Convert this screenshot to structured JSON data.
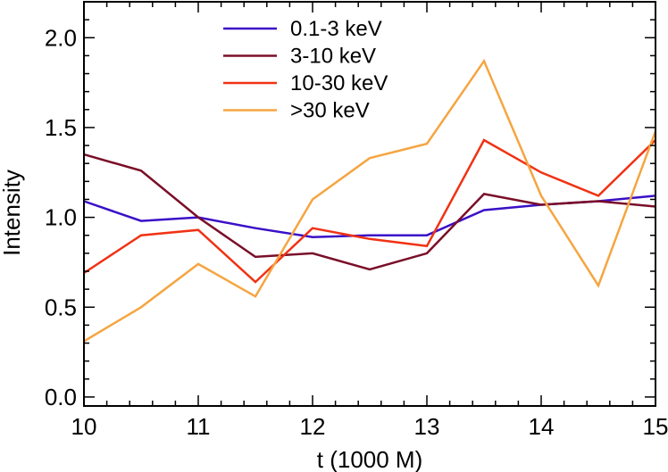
{
  "chart_data": {
    "type": "line",
    "title": "",
    "xlabel": "t (1000 M)",
    "ylabel": "Intensity",
    "xlim": [
      10,
      15
    ],
    "ylim": [
      -0.05,
      2.2
    ],
    "x_ticks": [
      10,
      11,
      12,
      13,
      14,
      15
    ],
    "x_tick_labels": [
      "10",
      "11",
      "12",
      "13",
      "14",
      "15"
    ],
    "y_ticks": [
      0.0,
      0.5,
      1.0,
      1.5,
      2.0
    ],
    "y_tick_labels": [
      "0.0",
      "0.5",
      "1.0",
      "1.5",
      "2.0"
    ],
    "grid": false,
    "legend_position": "top-center",
    "x": [
      10.0,
      10.5,
      11.0,
      11.5,
      12.0,
      12.5,
      13.0,
      13.5,
      14.0,
      14.5,
      15.0
    ],
    "series": [
      {
        "name": "0.1-3 keV",
        "color": "#3a10c8",
        "values": [
          1.09,
          0.98,
          1.0,
          0.94,
          0.89,
          0.9,
          0.9,
          1.04,
          1.07,
          1.09,
          1.12
        ]
      },
      {
        "name": "3-10 keV",
        "color": "#7a0e28",
        "values": [
          1.35,
          1.26,
          1.0,
          0.78,
          0.8,
          0.71,
          0.8,
          1.13,
          1.07,
          1.09,
          1.06
        ]
      },
      {
        "name": "10-30 keV",
        "color": "#f03214",
        "values": [
          0.69,
          0.9,
          0.93,
          0.64,
          0.94,
          0.88,
          0.84,
          1.43,
          1.25,
          1.12,
          1.43
        ]
      },
      {
        "name": ">30 keV",
        "color": "#f5a541",
        "values": [
          0.31,
          0.5,
          0.74,
          0.56,
          1.1,
          1.33,
          1.41,
          1.87,
          1.12,
          0.62,
          1.48
        ]
      }
    ]
  }
}
